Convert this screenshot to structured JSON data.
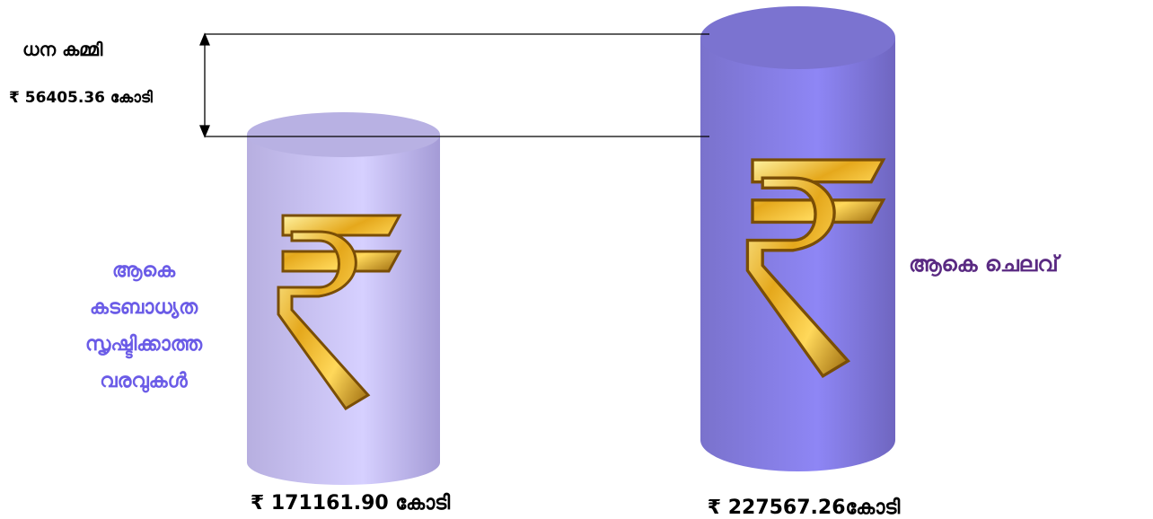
{
  "deficit": {
    "title": "ധന കമ്മി",
    "amount": "₹ 56405.36 കോടി"
  },
  "left": {
    "label_lines": [
      "ആകെ",
      "കടബാധ്യത",
      "സൃഷ്ടിക്കാത്ത",
      "വരവുകൾ"
    ],
    "amount": "₹ 171161.90 കോടി"
  },
  "right": {
    "label": "ആകെ ചെലവ്",
    "amount": "₹ 227567.26കോടി"
  }
}
